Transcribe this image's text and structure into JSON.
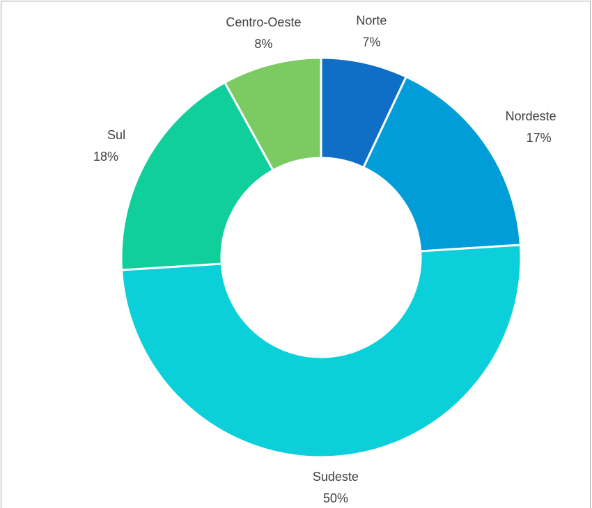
{
  "chart_data": {
    "type": "donut",
    "categories": [
      "Norte",
      "Nordeste",
      "Sudeste",
      "Sul",
      "Centro-Oeste"
    ],
    "values": [
      7,
      17,
      50,
      18,
      8
    ],
    "value_labels": [
      "7%",
      "17%",
      "50%",
      "18%",
      "8%"
    ],
    "colors": [
      "#0f6fc6",
      "#009dd9",
      "#0bd0d9",
      "#10cf9b",
      "#7cca62"
    ]
  }
}
